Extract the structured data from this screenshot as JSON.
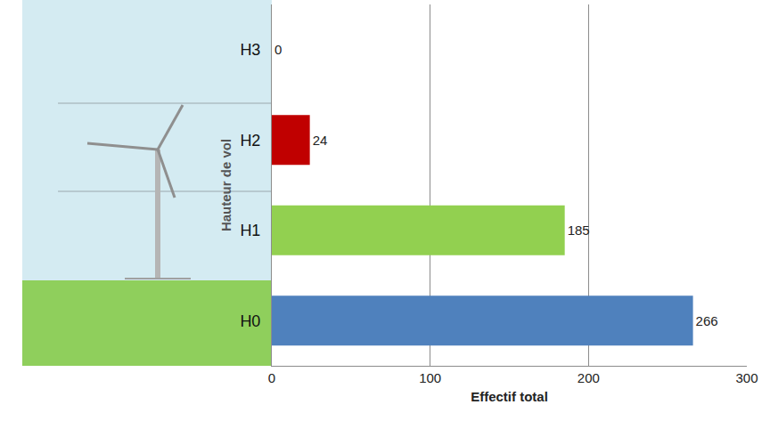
{
  "chart_data": {
    "type": "bar",
    "orientation": "horizontal",
    "categories": [
      "H0",
      "H1",
      "H2",
      "H3"
    ],
    "values": [
      266,
      185,
      24,
      0
    ],
    "colors": [
      "#4f81bd",
      "#92d050",
      "#c00000",
      "#c00000"
    ],
    "x_label": "Effectif total",
    "y_label": "Hauteur de vol",
    "xlim": [
      0,
      300
    ],
    "xticks": [
      0,
      100,
      200,
      300
    ],
    "grid": true,
    "data_labels": true
  }
}
